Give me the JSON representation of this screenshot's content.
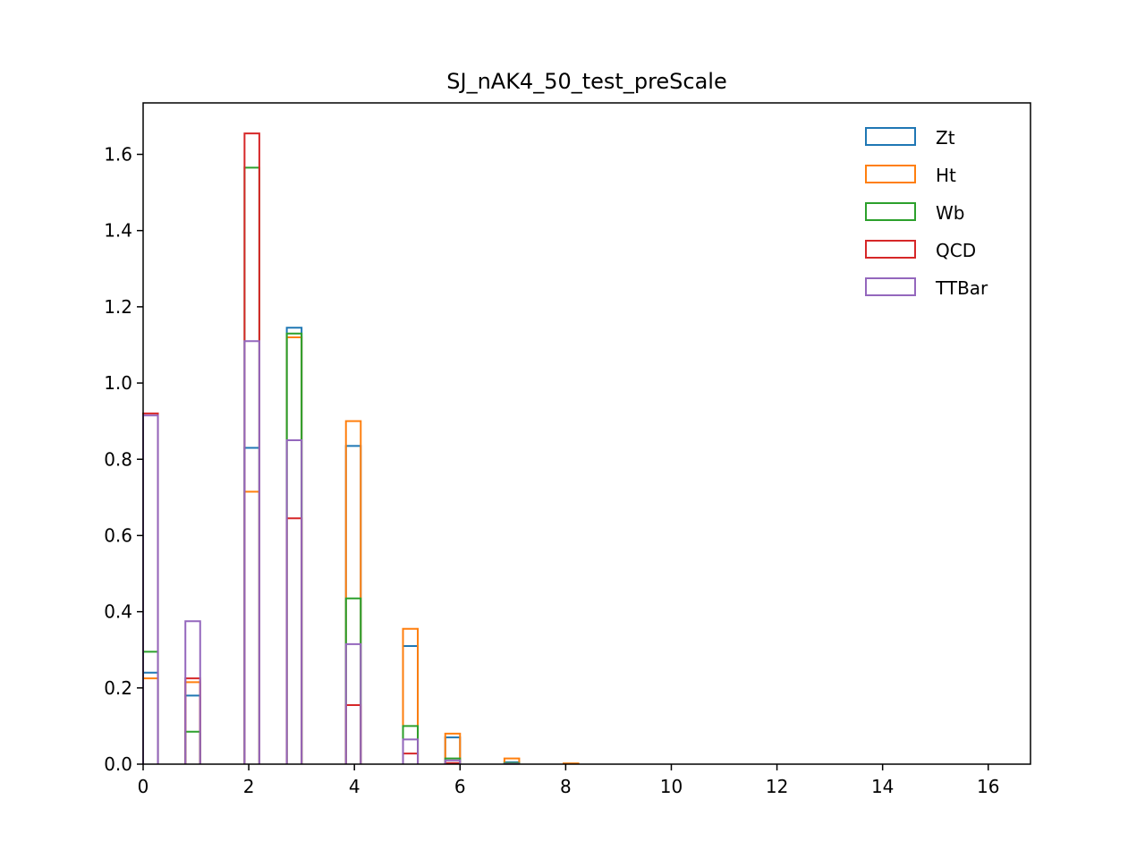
{
  "chart_data": {
    "type": "bar",
    "histtype": "step",
    "title": "SJ_nAK4_50_test_preScale",
    "xlabel": "",
    "ylabel": "",
    "xlim": [
      0,
      16.8
    ],
    "ylim": [
      0,
      1.735
    ],
    "xticks": [
      0,
      2,
      4,
      6,
      8,
      10,
      12,
      14,
      16
    ],
    "yticks": [
      0.0,
      0.2,
      0.4,
      0.6,
      0.8,
      1.0,
      1.2,
      1.4,
      1.6
    ],
    "xtick_labels": [
      "0",
      "2",
      "4",
      "6",
      "8",
      "10",
      "12",
      "14",
      "16"
    ],
    "ytick_labels": [
      "0.0",
      "0.2",
      "0.4",
      "0.6",
      "0.8",
      "1.0",
      "1.2",
      "1.4",
      "1.6"
    ],
    "bin_width": 0.28,
    "bin_lefts": [
      0.0,
      0.8,
      1.92,
      2.72,
      3.84,
      4.92,
      5.72,
      6.84,
      7.96
    ],
    "legend_position": "upper right",
    "series": [
      {
        "name": "Zt",
        "color": "#1f77b4",
        "values": [
          0.24,
          0.18,
          0.83,
          1.145,
          0.835,
          0.31,
          0.07,
          0.005,
          0.0
        ]
      },
      {
        "name": "Ht",
        "color": "#ff7f0e",
        "values": [
          0.225,
          0.215,
          0.715,
          1.12,
          0.9,
          0.355,
          0.08,
          0.015,
          0.002
        ]
      },
      {
        "name": "Wb",
        "color": "#2ca02c",
        "values": [
          0.295,
          0.085,
          1.565,
          1.13,
          0.435,
          0.1,
          0.015,
          0.003,
          0.0
        ]
      },
      {
        "name": "QCD",
        "color": "#d62728",
        "values": [
          0.92,
          0.225,
          1.655,
          0.645,
          0.155,
          0.028,
          0.003,
          0.0,
          0.0
        ]
      },
      {
        "name": "TTBar",
        "color": "#9467bd",
        "values": [
          0.915,
          0.375,
          1.11,
          0.85,
          0.315,
          0.065,
          0.01,
          0.001,
          0.0
        ]
      }
    ]
  }
}
